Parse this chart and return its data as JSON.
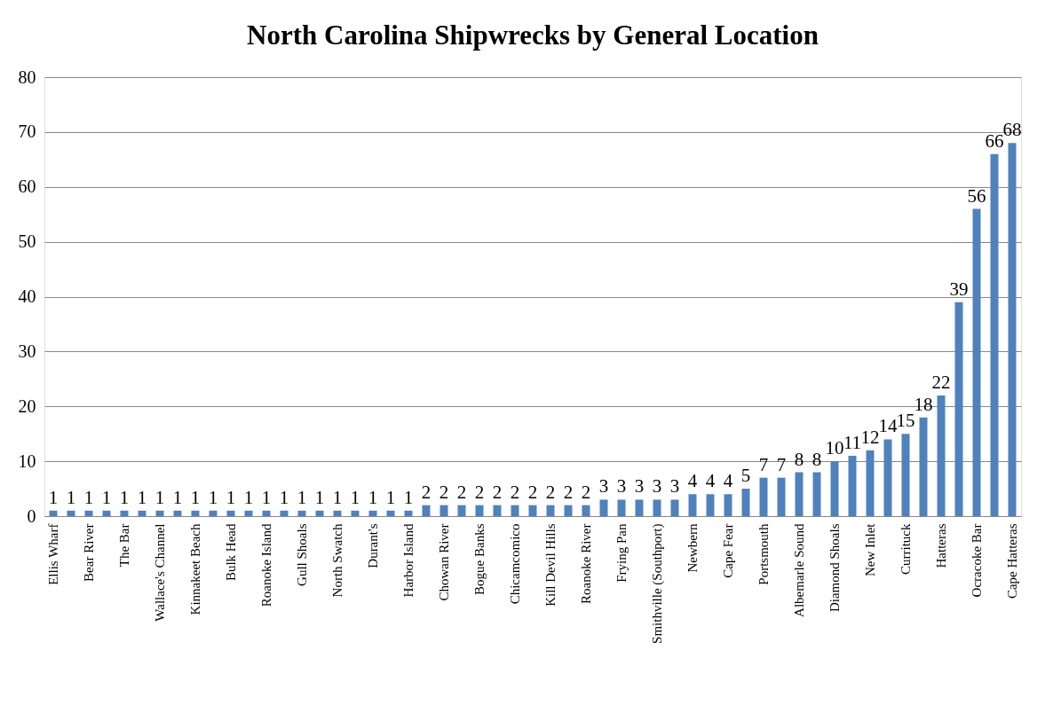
{
  "chart_data": {
    "type": "bar",
    "title": "North Carolina Shipwrecks by General Location",
    "categories": [
      "Ellis Wharf",
      null,
      "Bear River",
      null,
      "The Bar",
      null,
      "Wallace's Channel",
      null,
      "Kinnakeet Beach",
      null,
      "Bulk Head",
      null,
      "Roanoke Island",
      null,
      "Gull Shoals",
      null,
      "North Swatch",
      null,
      "Durant's",
      null,
      "Harbor Island",
      null,
      "Chowan River",
      null,
      "Bogue Banks",
      null,
      "Chicamcomico",
      null,
      "Kill Devil Hills",
      null,
      "Roanoke River",
      null,
      "Frying Pan",
      null,
      "Smithville (Southport)",
      null,
      "Newbern",
      null,
      "Cape Fear",
      null,
      "Portsmouth",
      null,
      "Albemarle Sound",
      null,
      "Diamond Shoals",
      null,
      "New Inlet",
      null,
      "Currituck",
      null,
      "Hatteras",
      null,
      "Ocracoke Bar",
      null,
      "Cape Hatteras"
    ],
    "values": [
      1,
      1,
      1,
      1,
      1,
      1,
      1,
      1,
      1,
      1,
      1,
      1,
      1,
      1,
      1,
      1,
      1,
      1,
      1,
      1,
      1,
      2,
      2,
      2,
      2,
      2,
      2,
      2,
      2,
      2,
      2,
      3,
      3,
      3,
      3,
      3,
      4,
      4,
      4,
      5,
      7,
      7,
      8,
      8,
      10,
      11,
      12,
      14,
      15,
      18,
      22,
      39,
      56,
      66,
      68
    ],
    "color": "#4f81bd",
    "ylim": [
      0,
      80
    ],
    "yticks": [
      0,
      10,
      20,
      30,
      40,
      50,
      60,
      70,
      80
    ],
    "grid": "y",
    "data_labels": true
  }
}
